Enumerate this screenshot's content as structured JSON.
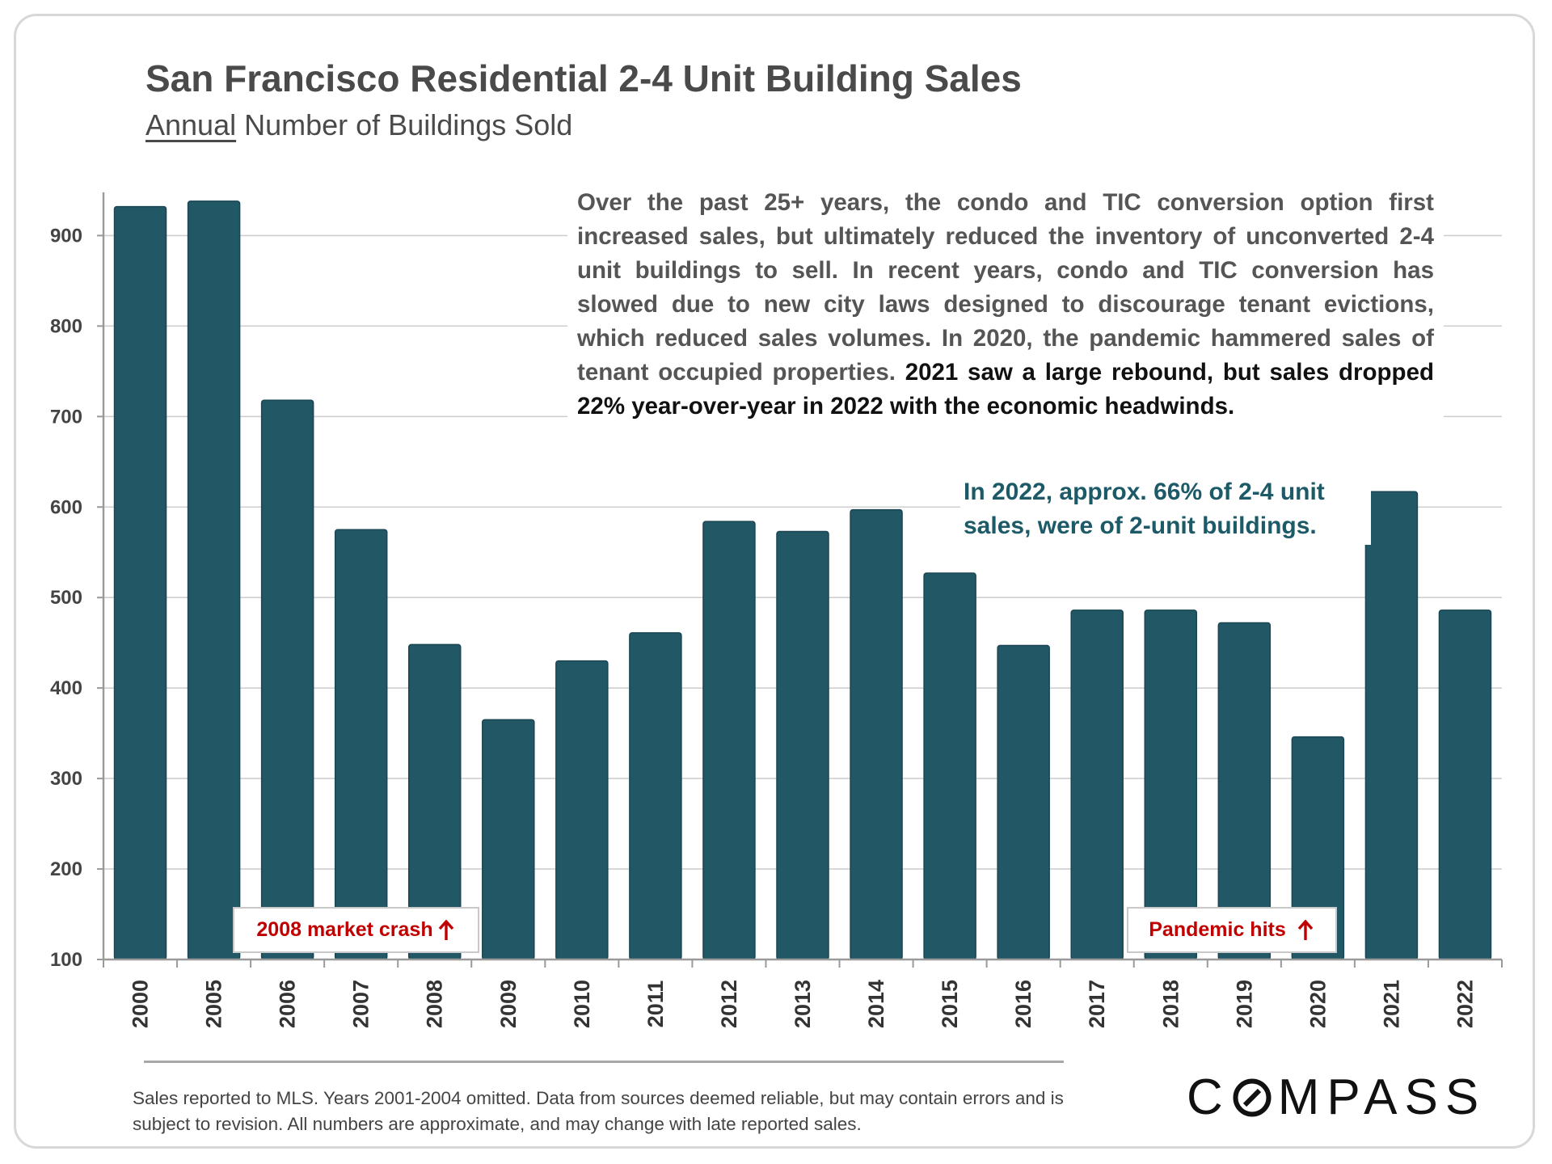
{
  "header": {
    "title": "San Francisco Residential 2-4 Unit Building Sales",
    "subtitle_underlined": "Annual",
    "subtitle_rest": " Number of Buildings Sold"
  },
  "notes": {
    "main_regular": "Over the past 25+ years, the condo and TIC conversion option first increased sales, but ultimately reduced the inventory of unconverted 2-4 unit buildings to sell. In recent years, condo and TIC conversion has slowed due to new city laws designed to discourage tenant evictions, which reduced sales volumes. In 2020, the pandemic hammered sales of tenant occupied properties.",
    "main_emphasis": "2021 saw a large rebound, but sales dropped 22% year-over-year in 2022 with the economic headwinds.",
    "share": "In 2022, approx. 66% of 2-4 unit sales, were of 2-unit buildings."
  },
  "callouts": {
    "crash": "2008 market crash",
    "pandemic": "Pandemic hits"
  },
  "footer": {
    "footnote": "Sales reported to MLS. Years 2001-2004 omitted. Data from sources deemed reliable, but may contain errors and is subject to revision. All numbers are approximate, and may change with late reported sales.",
    "logo_left": "C",
    "logo_right": "MPASS"
  },
  "colors": {
    "bar": "#225766",
    "bar_edge": "#1a4652",
    "callout_text": "#c00000",
    "share_note": "#1d5a67"
  },
  "chart_data": {
    "type": "bar",
    "title": "San Francisco Residential 2-4 Unit Building Sales",
    "subtitle": "Annual Number of Buildings Sold",
    "xlabel": "",
    "ylabel": "",
    "categories": [
      "2000",
      "2005",
      "2006",
      "2007",
      "2008",
      "2009",
      "2010",
      "2011",
      "2012",
      "2013",
      "2014",
      "2015",
      "2016",
      "2017",
      "2018",
      "2019",
      "2020",
      "2021",
      "2022"
    ],
    "values": [
      932,
      938,
      718,
      575,
      448,
      365,
      430,
      461,
      584,
      573,
      597,
      527,
      447,
      486,
      486,
      472,
      346,
      617,
      486
    ],
    "ylim": [
      100,
      950
    ],
    "yticks": [
      100,
      200,
      300,
      400,
      500,
      600,
      700,
      800,
      900
    ],
    "grid": true,
    "legend": "none"
  }
}
